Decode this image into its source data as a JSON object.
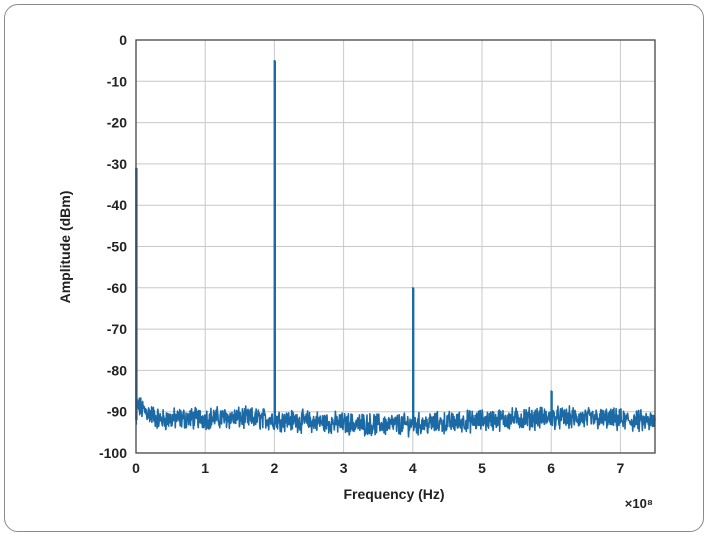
{
  "chart_data": {
    "type": "line",
    "title": "",
    "xlabel": "Frequency (Hz)",
    "ylabel": "Amplitude (dBm)",
    "x_multiplier_label": "×10⁸",
    "xlim": [
      0,
      7.5
    ],
    "ylim": [
      -100,
      0
    ],
    "x_ticks": [
      "0",
      "1",
      "2",
      "3",
      "4",
      "5",
      "6",
      "7"
    ],
    "y_ticks": [
      "0",
      "-10",
      "-20",
      "-30",
      "-40",
      "-50",
      "-60",
      "-70",
      "-80",
      "-90",
      "-100"
    ],
    "grid": true,
    "line_color": "#1b6aa5",
    "noise_floor_dbm": -92,
    "series": [
      {
        "peaks": [
          {
            "x": 0.0,
            "y": -31
          },
          {
            "x": 2.0,
            "y": -5
          },
          {
            "x": 4.0,
            "y": -60
          },
          {
            "x": 6.0,
            "y": -85
          }
        ]
      }
    ]
  }
}
